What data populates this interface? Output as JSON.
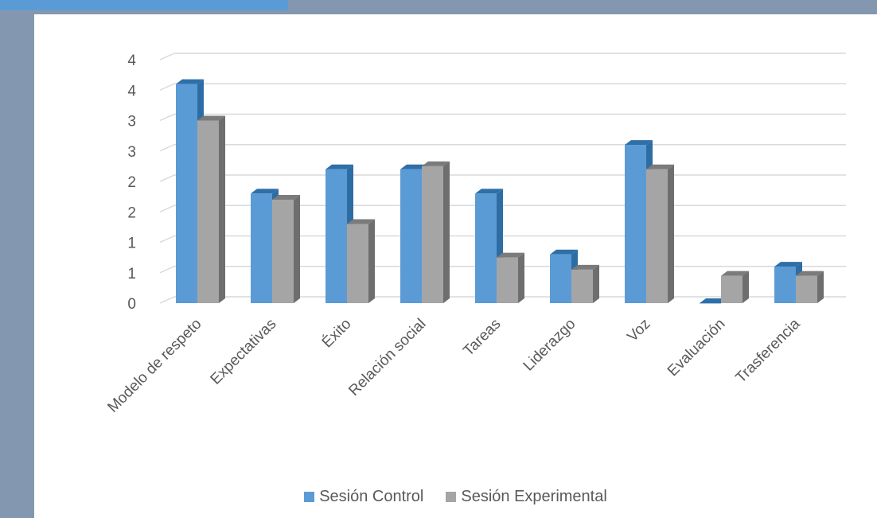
{
  "chart_data": {
    "type": "bar",
    "variant": "3d-clustered",
    "categories": [
      "Modelo de respeto",
      "Expectativas",
      "Éxito",
      "Relación social",
      "Tareas",
      "Liderazgo",
      "Voz",
      "Evaluación",
      "Trasferencia"
    ],
    "series": [
      {
        "name": "Sesión Control",
        "color": "#5b9bd5",
        "side": "#2e6da4",
        "top": "#2f6fa8",
        "values": [
          3.6,
          1.8,
          2.2,
          2.2,
          1.8,
          0.8,
          2.6,
          0.0,
          0.6
        ]
      },
      {
        "name": "Sesión Experimental",
        "color": "#a5a5a5",
        "side": "#6e6e6e",
        "top": "#7b7b7b",
        "values": [
          3.0,
          1.7,
          1.3,
          2.25,
          0.75,
          0.55,
          2.2,
          0.45,
          0.45
        ]
      }
    ],
    "y_tick_values": [
      0,
      0.5,
      1,
      1.5,
      2,
      2.5,
      3,
      3.5,
      4
    ],
    "y_tick_labels": [
      "0",
      "1",
      "1",
      "2",
      "2",
      "3",
      "3",
      "4",
      "4"
    ],
    "ylim": [
      0,
      4
    ],
    "grid": true,
    "legend_position": "bottom",
    "title": "",
    "xlabel": "",
    "ylabel": ""
  }
}
